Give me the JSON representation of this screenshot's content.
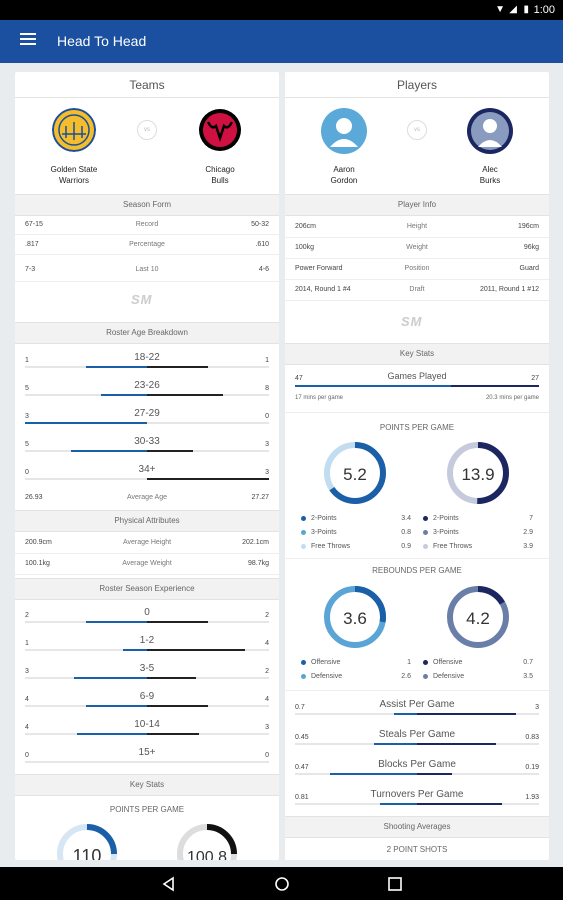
{
  "status": {
    "time": "1:00"
  },
  "appbar": {
    "title": "Head To Head"
  },
  "teams": {
    "header": "Teams",
    "left_name1": "Golden State",
    "left_name2": "Warriors",
    "right_name1": "Chicago",
    "right_name2": "Bulls",
    "vs": "vs",
    "season_form": "Season Form",
    "form_rows": [
      {
        "l": "67-15",
        "c": "Record",
        "r": "50-32"
      },
      {
        "l": ".817",
        "c": "Percentage",
        "r": ".610"
      },
      {
        "l": "7-3",
        "c": "Last 10",
        "r": "4-6"
      }
    ],
    "sm": "SM",
    "roster_age": "Roster Age Breakdown",
    "age_rows": [
      {
        "l": "1",
        "c": "18-22",
        "r": "1",
        "lf": 0.5,
        "rf": 0.5
      },
      {
        "l": "5",
        "c": "23-26",
        "r": "8",
        "lf": 0.38,
        "rf": 0.62
      },
      {
        "l": "3",
        "c": "27-29",
        "r": "0",
        "lf": 1,
        "rf": 0
      },
      {
        "l": "5",
        "c": "30-33",
        "r": "3",
        "lf": 0.62,
        "rf": 0.38
      },
      {
        "l": "0",
        "c": "34+",
        "r": "3",
        "lf": 0,
        "rf": 1
      }
    ],
    "avg_age": {
      "l": "26.93",
      "c": "Average Age",
      "r": "27.27"
    },
    "physical": "Physical Attributes",
    "phys_rows": [
      {
        "l": "200.9cm",
        "c": "Average Height",
        "r": "202.1cm"
      },
      {
        "l": "100.1kg",
        "c": "Average Weight",
        "r": "98.7kg"
      }
    ],
    "experience": "Roster Season Experience",
    "exp_rows": [
      {
        "l": "2",
        "c": "0",
        "r": "2",
        "lf": 0.5,
        "rf": 0.5
      },
      {
        "l": "1",
        "c": "1-2",
        "r": "4",
        "lf": 0.2,
        "rf": 0.8
      },
      {
        "l": "3",
        "c": "3-5",
        "r": "2",
        "lf": 0.6,
        "rf": 0.4
      },
      {
        "l": "4",
        "c": "6-9",
        "r": "4",
        "lf": 0.5,
        "rf": 0.5
      },
      {
        "l": "4",
        "c": "10-14",
        "r": "3",
        "lf": 0.57,
        "rf": 0.43
      },
      {
        "l": "0",
        "c": "15+",
        "r": "0",
        "lf": 0,
        "rf": 0
      }
    ],
    "key_stats": "Key Stats",
    "ppg": "POINTS PER GAME",
    "ppg_left": "110",
    "ppg_right": "100.8"
  },
  "players": {
    "header": "Players",
    "left_name1": "Aaron",
    "left_name2": "Gordon",
    "right_name1": "Alec",
    "right_name2": "Burks",
    "vs": "vs",
    "player_info": "Player Info",
    "info_rows": [
      {
        "l": "206cm",
        "c": "Height",
        "r": "196cm"
      },
      {
        "l": "100kg",
        "c": "Weight",
        "r": "96kg"
      },
      {
        "l": "Power Forward",
        "c": "Position",
        "r": "Guard"
      },
      {
        "l": "2014, Round 1 #4",
        "c": "Draft",
        "r": "2011, Round 1 #12"
      }
    ],
    "sm": "SM",
    "key_stats": "Key Stats",
    "games": {
      "l": "47",
      "c": "Games Played",
      "r": "27",
      "lf": 0.64,
      "rf": 0.36,
      "sl": "17 mins per game",
      "sr": "20.3 mins per game"
    },
    "ppg_title": "POINTS PER GAME",
    "ppg_left": "5.2",
    "ppg_right": "13.9",
    "ppg_left_legend": [
      {
        "t": "2-Points",
        "v": "3.4",
        "color": "#1b5fa8"
      },
      {
        "t": "3-Points",
        "v": "0.8",
        "color": "#5aa5d6"
      },
      {
        "t": "Free Throws",
        "v": "0.9",
        "color": "#c3ddf0"
      }
    ],
    "ppg_right_legend": [
      {
        "t": "2-Points",
        "v": "7",
        "color": "#1c2660"
      },
      {
        "t": "3-Points",
        "v": "2.9",
        "color": "#6a7fa8"
      },
      {
        "t": "Free Throws",
        "v": "3.9",
        "color": "#c5cbdc"
      }
    ],
    "rpg_title": "REBOUNDS PER GAME",
    "rpg_left": "3.6",
    "rpg_right": "4.2",
    "rpg_left_legend": [
      {
        "t": "Offensive",
        "v": "1",
        "color": "#1b5fa8"
      },
      {
        "t": "Defensive",
        "v": "2.6",
        "color": "#5aa5d6"
      }
    ],
    "rpg_right_legend": [
      {
        "t": "Offensive",
        "v": "0.7",
        "color": "#1c2660"
      },
      {
        "t": "Defensive",
        "v": "3.5",
        "color": "#6a7fa8"
      }
    ],
    "stat_rows": [
      {
        "l": "0.7",
        "c": "Assist Per Game",
        "r": "3",
        "lf": 0.19,
        "rf": 0.81
      },
      {
        "l": "0.45",
        "c": "Steals Per Game",
        "r": "0.83",
        "lf": 0.35,
        "rf": 0.65
      },
      {
        "l": "0.47",
        "c": "Blocks Per Game",
        "r": "0.19",
        "lf": 0.71,
        "rf": 0.29
      },
      {
        "l": "0.81",
        "c": "Turnovers Per Game",
        "r": "1.93",
        "lf": 0.3,
        "rf": 0.7
      }
    ],
    "shooting": "Shooting Averages",
    "two_pt": "2 POINT SHOTS"
  }
}
